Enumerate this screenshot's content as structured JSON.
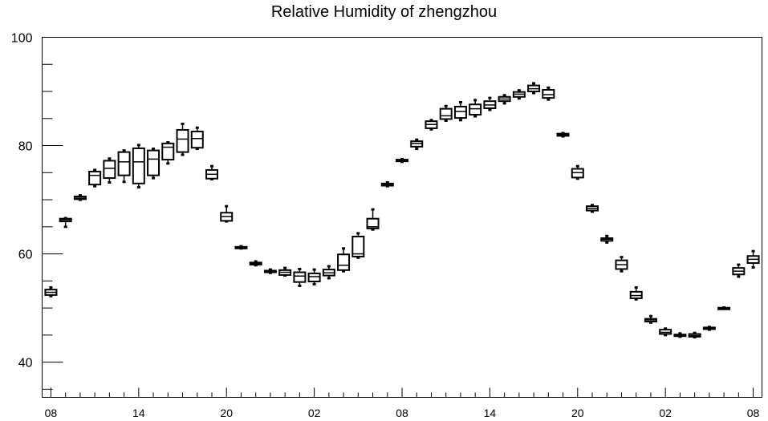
{
  "chart_data": {
    "type": "box",
    "title": "Relative Humidity of zhengzhou",
    "xlabel": "",
    "ylabel": "",
    "ylim": [
      33.5,
      100
    ],
    "yticks": [
      40,
      60,
      80,
      100
    ],
    "x_tick_labels": [
      "08",
      "14",
      "20",
      "02",
      "08",
      "14",
      "20",
      "02",
      "08"
    ],
    "x_tick_hours": [
      0,
      6,
      12,
      18,
      24,
      30,
      36,
      42,
      48
    ],
    "xlim": [
      -0.6,
      48.6
    ],
    "grid": false,
    "series": [
      {
        "values": [
          {
            "hour": 0,
            "min": 52.2,
            "q1": 52.4,
            "median": 52.9,
            "q3": 53.4,
            "max": 53.8
          },
          {
            "hour": 1,
            "min": 65.0,
            "q1": 66.0,
            "median": 66.3,
            "q3": 66.5,
            "max": 66.6
          },
          {
            "hour": 2,
            "min": 70.0,
            "q1": 70.1,
            "median": 70.3,
            "q3": 70.6,
            "max": 70.8
          },
          {
            "hour": 3,
            "min": 72.5,
            "q1": 72.8,
            "median": 74.5,
            "q3": 75.2,
            "max": 75.5
          },
          {
            "hour": 4,
            "min": 73.2,
            "q1": 74.0,
            "median": 75.8,
            "q3": 77.2,
            "max": 77.6
          },
          {
            "hour": 5,
            "min": 73.3,
            "q1": 74.5,
            "median": 77.0,
            "q3": 78.8,
            "max": 79.1
          },
          {
            "hour": 6,
            "min": 72.3,
            "q1": 73.0,
            "median": 77.0,
            "q3": 79.5,
            "max": 80.1
          },
          {
            "hour": 7,
            "min": 74.0,
            "q1": 74.5,
            "median": 77.5,
            "q3": 79.1,
            "max": 79.4
          },
          {
            "hour": 8,
            "min": 76.7,
            "q1": 77.4,
            "median": 79.7,
            "q3": 80.4,
            "max": 80.6
          },
          {
            "hour": 9,
            "min": 78.3,
            "q1": 78.8,
            "median": 81.2,
            "q3": 82.9,
            "max": 84.0
          },
          {
            "hour": 10,
            "min": 79.4,
            "q1": 79.6,
            "median": 81.3,
            "q3": 82.6,
            "max": 83.3
          },
          {
            "hour": 11,
            "min": 73.8,
            "q1": 73.9,
            "median": 74.7,
            "q3": 75.5,
            "max": 76.2
          },
          {
            "hour": 12,
            "min": 66.0,
            "q1": 66.1,
            "median": 66.9,
            "q3": 67.6,
            "max": 68.8
          },
          {
            "hour": 13,
            "min": 61.0,
            "q1": 61.1,
            "median": 61.2,
            "q3": 61.3,
            "max": 61.4
          },
          {
            "hour": 14,
            "min": 57.9,
            "q1": 58.0,
            "median": 58.2,
            "q3": 58.4,
            "max": 58.6
          },
          {
            "hour": 15,
            "min": 56.5,
            "q1": 56.6,
            "median": 56.8,
            "q3": 56.9,
            "max": 57.1
          },
          {
            "hour": 16,
            "min": 56.0,
            "q1": 56.1,
            "median": 56.6,
            "q3": 57.0,
            "max": 57.4
          },
          {
            "hour": 17,
            "min": 54.1,
            "q1": 54.8,
            "median": 55.9,
            "q3": 56.6,
            "max": 57.2
          },
          {
            "hour": 18,
            "min": 54.4,
            "q1": 54.9,
            "median": 55.8,
            "q3": 56.4,
            "max": 57.1
          },
          {
            "hour": 19,
            "min": 55.5,
            "q1": 56.0,
            "median": 56.5,
            "q3": 57.1,
            "max": 57.7
          },
          {
            "hour": 20,
            "min": 56.8,
            "q1": 57.0,
            "median": 57.9,
            "q3": 59.9,
            "max": 61.0
          },
          {
            "hour": 21,
            "min": 59.3,
            "q1": 59.5,
            "median": 60.0,
            "q3": 63.2,
            "max": 63.8
          },
          {
            "hour": 22,
            "min": 64.5,
            "q1": 64.7,
            "median": 65.0,
            "q3": 66.5,
            "max": 68.2
          },
          {
            "hour": 23,
            "min": 72.5,
            "q1": 72.6,
            "median": 72.8,
            "q3": 73.0,
            "max": 73.2
          },
          {
            "hour": 24,
            "min": 77.0,
            "q1": 77.1,
            "median": 77.3,
            "q3": 77.4,
            "max": 77.5
          },
          {
            "hour": 25,
            "min": 79.4,
            "q1": 79.8,
            "median": 80.4,
            "q3": 80.8,
            "max": 81.1
          },
          {
            "hour": 26,
            "min": 83.0,
            "q1": 83.2,
            "median": 83.9,
            "q3": 84.5,
            "max": 84.7
          },
          {
            "hour": 27,
            "min": 84.6,
            "q1": 84.9,
            "median": 85.5,
            "q3": 86.8,
            "max": 87.3
          },
          {
            "hour": 28,
            "min": 84.7,
            "q1": 85.1,
            "median": 86.3,
            "q3": 87.2,
            "max": 88.0
          },
          {
            "hour": 29,
            "min": 85.4,
            "q1": 85.7,
            "median": 86.8,
            "q3": 87.6,
            "max": 88.4
          },
          {
            "hour": 30,
            "min": 86.6,
            "q1": 86.9,
            "median": 87.5,
            "q3": 88.2,
            "max": 88.8
          },
          {
            "hour": 31,
            "min": 87.8,
            "q1": 88.2,
            "median": 88.6,
            "q3": 89.0,
            "max": 89.3
          },
          {
            "hour": 32,
            "min": 88.7,
            "q1": 89.0,
            "median": 89.5,
            "q3": 89.9,
            "max": 90.2
          },
          {
            "hour": 33,
            "min": 89.7,
            "q1": 90.0,
            "median": 90.5,
            "q3": 91.1,
            "max": 91.5
          },
          {
            "hour": 34,
            "min": 88.5,
            "q1": 88.8,
            "median": 89.4,
            "q3": 90.3,
            "max": 90.7
          },
          {
            "hour": 35,
            "min": 81.7,
            "q1": 81.8,
            "median": 82.0,
            "q3": 82.2,
            "max": 82.3
          },
          {
            "hour": 36,
            "min": 73.9,
            "q1": 74.1,
            "median": 75.0,
            "q3": 75.7,
            "max": 76.2
          },
          {
            "hour": 37,
            "min": 67.8,
            "q1": 68.0,
            "median": 68.4,
            "q3": 68.8,
            "max": 69.0
          },
          {
            "hour": 38,
            "min": 62.1,
            "q1": 62.4,
            "median": 62.7,
            "q3": 62.9,
            "max": 63.3
          },
          {
            "hour": 39,
            "min": 56.8,
            "q1": 57.2,
            "median": 58.0,
            "q3": 58.8,
            "max": 59.4
          },
          {
            "hour": 40,
            "min": 51.6,
            "q1": 51.8,
            "median": 52.3,
            "q3": 53.0,
            "max": 53.8
          },
          {
            "hour": 41,
            "min": 47.3,
            "q1": 47.5,
            "median": 47.8,
            "q3": 48.0,
            "max": 48.5
          },
          {
            "hour": 42,
            "min": 45.0,
            "q1": 45.2,
            "median": 45.5,
            "q3": 46.0,
            "max": 46.2
          },
          {
            "hour": 43,
            "min": 44.7,
            "q1": 44.8,
            "median": 44.9,
            "q3": 45.1,
            "max": 45.3
          },
          {
            "hour": 44,
            "min": 44.6,
            "q1": 44.7,
            "median": 44.9,
            "q3": 45.2,
            "max": 45.4
          },
          {
            "hour": 45,
            "min": 46.0,
            "q1": 46.1,
            "median": 46.2,
            "q3": 46.4,
            "max": 46.5
          },
          {
            "hour": 46,
            "min": 49.9,
            "q1": 49.95,
            "median": 50.0,
            "q3": 50.05,
            "max": 50.1
          },
          {
            "hour": 47,
            "min": 55.8,
            "q1": 56.2,
            "median": 56.8,
            "q3": 57.4,
            "max": 58.0
          },
          {
            "hour": 48,
            "min": 57.5,
            "q1": 58.3,
            "median": 59.0,
            "q3": 59.6,
            "max": 60.5
          }
        ]
      }
    ]
  }
}
